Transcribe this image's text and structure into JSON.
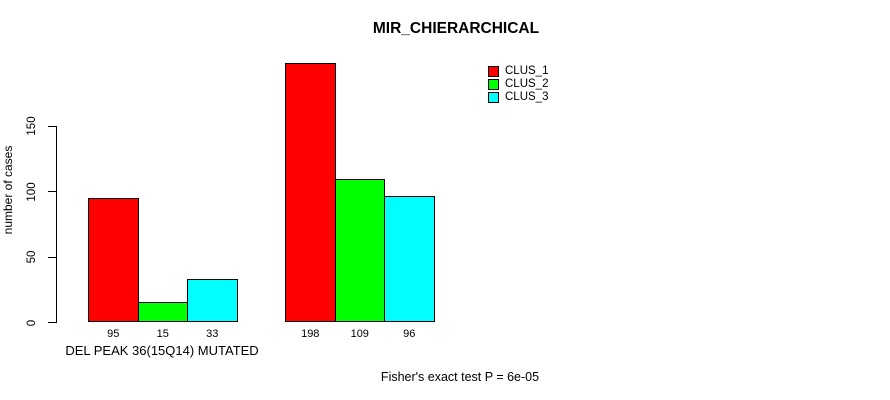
{
  "title": "MIR_CHIERARCHICAL",
  "chart_data": {
    "type": "bar",
    "title": "MIR_CHIERARCHICAL",
    "ylabel": "number of cases",
    "xlabel": "",
    "yticks": [
      0,
      50,
      100,
      150
    ],
    "ylim": [
      0,
      205
    ],
    "grid": false,
    "legend_position": "top-right",
    "categories": [
      "DEL PEAK 36(15Q14) MUTATED",
      ""
    ],
    "series": [
      {
        "name": "CLUS_1",
        "color": "#ff0000",
        "values": [
          95,
          198
        ]
      },
      {
        "name": "CLUS_2",
        "color": "#00ff00",
        "values": [
          15,
          109
        ]
      },
      {
        "name": "CLUS_3",
        "color": "#00ffff",
        "values": [
          33,
          96
        ]
      }
    ],
    "bar_labels": [
      [
        95,
        15,
        33
      ],
      [
        198,
        109,
        96
      ]
    ],
    "annotation": "Fisher's exact test P = 6e-05"
  },
  "colors": {
    "clus_1": "#ff0000",
    "clus_2": "#00ff00",
    "clus_3": "#00ffff",
    "axis": "#000000",
    "background": "#ffffff"
  }
}
